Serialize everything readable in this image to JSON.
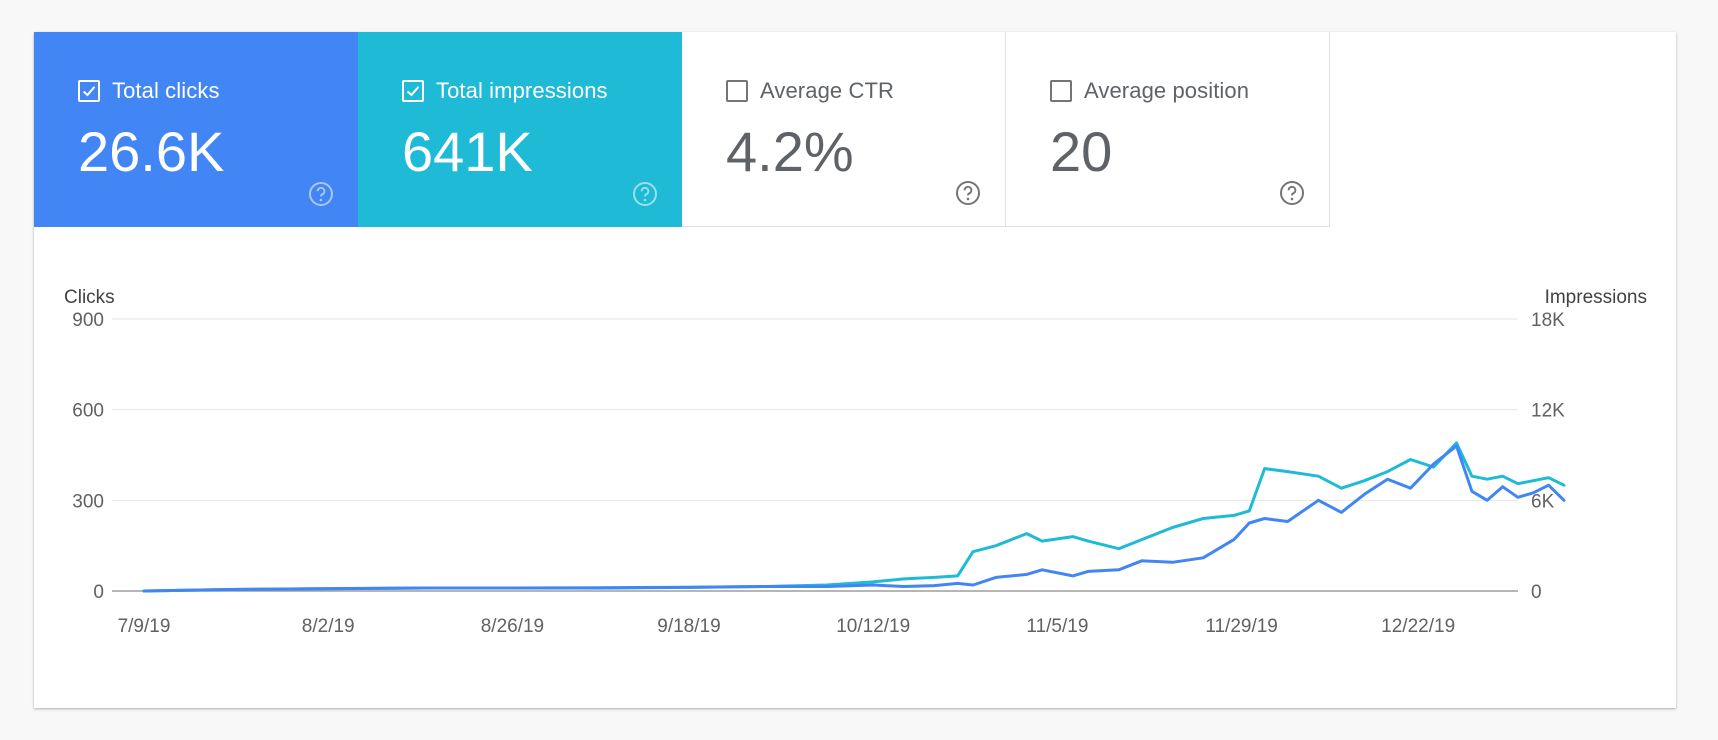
{
  "metrics": {
    "clicks": {
      "label": "Total clicks",
      "value": "26.6K",
      "checked": true,
      "color": "#4285f4"
    },
    "impressions": {
      "label": "Total impressions",
      "value": "641K",
      "checked": true,
      "color": "#1fbad6"
    },
    "ctr": {
      "label": "Average CTR",
      "value": "4.2%",
      "checked": false
    },
    "position": {
      "label": "Average position",
      "value": "20",
      "checked": false
    },
    "help_icon": "help-circle-icon"
  },
  "chart_data": {
    "type": "line",
    "left_axis": {
      "title": "Clicks",
      "ticks": [
        "0",
        "300",
        "600",
        "900"
      ],
      "range": [
        0,
        900
      ]
    },
    "right_axis": {
      "title": "Impressions",
      "ticks": [
        "0",
        "6K",
        "12K",
        "18K"
      ],
      "range": [
        0,
        18000
      ]
    },
    "x_ticks": [
      {
        "label": "7/9/19",
        "date": "2019-07-09"
      },
      {
        "label": "8/2/19",
        "date": "2019-08-02"
      },
      {
        "label": "8/26/19",
        "date": "2019-08-26"
      },
      {
        "label": "9/18/19",
        "date": "2019-09-18"
      },
      {
        "label": "10/12/19",
        "date": "2019-10-12"
      },
      {
        "label": "11/5/19",
        "date": "2019-11-05"
      },
      {
        "label": "11/29/19",
        "date": "2019-11-29"
      },
      {
        "label": "12/22/19",
        "date": "2019-12-22"
      }
    ],
    "x_range": [
      "2019-07-09",
      "2020-01-10"
    ],
    "grid": true,
    "series": [
      {
        "name": "Impressions",
        "axis": "right",
        "color": "#1fbad6",
        "points": [
          [
            "2019-07-09",
            0
          ],
          [
            "2019-07-20",
            100
          ],
          [
            "2019-08-02",
            150
          ],
          [
            "2019-08-15",
            200
          ],
          [
            "2019-08-26",
            200
          ],
          [
            "2019-09-06",
            220
          ],
          [
            "2019-09-18",
            250
          ],
          [
            "2019-09-28",
            300
          ],
          [
            "2019-10-06",
            400
          ],
          [
            "2019-10-12",
            600
          ],
          [
            "2019-10-16",
            800
          ],
          [
            "2019-10-20",
            900
          ],
          [
            "2019-10-23",
            1000
          ],
          [
            "2019-10-25",
            2600
          ],
          [
            "2019-10-28",
            3000
          ],
          [
            "2019-11-01",
            3800
          ],
          [
            "2019-11-03",
            3300
          ],
          [
            "2019-11-07",
            3600
          ],
          [
            "2019-11-09",
            3300
          ],
          [
            "2019-11-13",
            2800
          ],
          [
            "2019-11-16",
            3400
          ],
          [
            "2019-11-20",
            4200
          ],
          [
            "2019-11-24",
            4800
          ],
          [
            "2019-11-28",
            5000
          ],
          [
            "2019-11-30",
            5300
          ],
          [
            "2019-12-02",
            8100
          ],
          [
            "2019-12-05",
            7900
          ],
          [
            "2019-12-09",
            7600
          ],
          [
            "2019-12-12",
            6800
          ],
          [
            "2019-12-15",
            7300
          ],
          [
            "2019-12-18",
            7900
          ],
          [
            "2019-12-21",
            8700
          ],
          [
            "2019-12-24",
            8200
          ],
          [
            "2019-12-27",
            9800
          ],
          [
            "2019-12-29",
            7600
          ],
          [
            "2019-12-31",
            7400
          ],
          [
            "2020-01-02",
            7600
          ],
          [
            "2020-01-04",
            7100
          ],
          [
            "2020-01-06",
            7300
          ],
          [
            "2020-01-08",
            7500
          ],
          [
            "2020-01-10",
            7000
          ]
        ]
      },
      {
        "name": "Clicks",
        "axis": "left",
        "color": "#4285f4",
        "points": [
          [
            "2019-07-09",
            0
          ],
          [
            "2019-07-20",
            5
          ],
          [
            "2019-08-02",
            8
          ],
          [
            "2019-08-15",
            10
          ],
          [
            "2019-08-26",
            10
          ],
          [
            "2019-09-06",
            10
          ],
          [
            "2019-09-18",
            12
          ],
          [
            "2019-09-28",
            15
          ],
          [
            "2019-10-06",
            15
          ],
          [
            "2019-10-12",
            20
          ],
          [
            "2019-10-16",
            15
          ],
          [
            "2019-10-20",
            18
          ],
          [
            "2019-10-23",
            25
          ],
          [
            "2019-10-25",
            20
          ],
          [
            "2019-10-28",
            45
          ],
          [
            "2019-11-01",
            55
          ],
          [
            "2019-11-03",
            70
          ],
          [
            "2019-11-07",
            50
          ],
          [
            "2019-11-09",
            65
          ],
          [
            "2019-11-13",
            70
          ],
          [
            "2019-11-16",
            100
          ],
          [
            "2019-11-20",
            95
          ],
          [
            "2019-11-24",
            110
          ],
          [
            "2019-11-28",
            170
          ],
          [
            "2019-11-30",
            225
          ],
          [
            "2019-12-02",
            240
          ],
          [
            "2019-12-05",
            230
          ],
          [
            "2019-12-09",
            300
          ],
          [
            "2019-12-12",
            260
          ],
          [
            "2019-12-15",
            320
          ],
          [
            "2019-12-18",
            370
          ],
          [
            "2019-12-21",
            340
          ],
          [
            "2019-12-24",
            420
          ],
          [
            "2019-12-27",
            480
          ],
          [
            "2019-12-29",
            330
          ],
          [
            "2019-12-31",
            300
          ],
          [
            "2020-01-02",
            345
          ],
          [
            "2020-01-04",
            310
          ],
          [
            "2020-01-06",
            325
          ],
          [
            "2020-01-08",
            350
          ],
          [
            "2020-01-10",
            300
          ]
        ]
      }
    ]
  }
}
